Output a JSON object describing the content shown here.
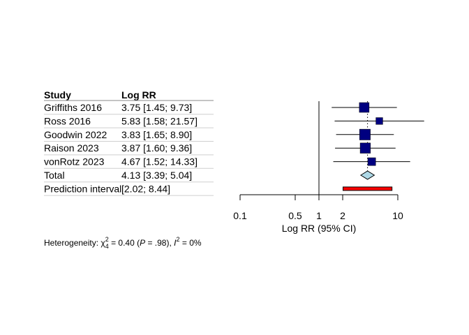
{
  "chart_data": {
    "type": "forest",
    "columns": [
      "Study",
      "Log RR"
    ],
    "studies": [
      {
        "label": "Griffiths 2016",
        "ci_text": "3.75 [1.45;  9.73]",
        "est": 3.75,
        "lower": 1.45,
        "upper": 9.73,
        "weight_marker": 1.0
      },
      {
        "label": "Ross 2016",
        "ci_text": "5.83 [1.58; 21.57]",
        "est": 5.83,
        "lower": 1.58,
        "upper": 21.57,
        "weight_marker": 0.7
      },
      {
        "label": "Goodwin 2022",
        "ci_text": "3.83 [1.65;  8.90]",
        "est": 3.83,
        "lower": 1.65,
        "upper": 8.9,
        "weight_marker": 1.1
      },
      {
        "label": "Raison 2023",
        "ci_text": "3.87 [1.60;  9.36]",
        "est": 3.87,
        "lower": 1.6,
        "upper": 9.36,
        "weight_marker": 1.05
      },
      {
        "label": "vonRotz 2023",
        "ci_text": "4.67 [1.52; 14.33]",
        "est": 4.67,
        "lower": 1.52,
        "upper": 14.33,
        "weight_marker": 0.8
      }
    ],
    "total": {
      "label": "Total",
      "ci_text": "4.13 [3.39;  5.04]",
      "est": 4.13,
      "lower": 3.39,
      "upper": 5.04
    },
    "prediction": {
      "label": "Prediction interval",
      "ci_text": "[2.02;  8.44]",
      "lower": 2.02,
      "upper": 8.44
    },
    "x_ticks": [
      "0.1",
      "0.5",
      "1",
      "2",
      "10"
    ],
    "x_tick_values": [
      0.1,
      0.5,
      1,
      2,
      10
    ],
    "xlabel": "Log RR (95% CI)",
    "xlim": [
      0.1,
      10
    ],
    "scale": "log",
    "reference_line": 1,
    "heterogeneity": {
      "prefix": "Heterogeneity: ",
      "chi_symbol": "χ",
      "chi_sub": "4",
      "chi_sup": "2",
      "chi_value": " = 0.40 (",
      "p_symbol": "P",
      "p_value": " = .98), ",
      "i_symbol": "I",
      "i_sup": "2",
      "i_value": " = 0%"
    },
    "colors": {
      "square": "#000080",
      "diamond": "#add8e6",
      "prediction": "#ff0000"
    }
  }
}
